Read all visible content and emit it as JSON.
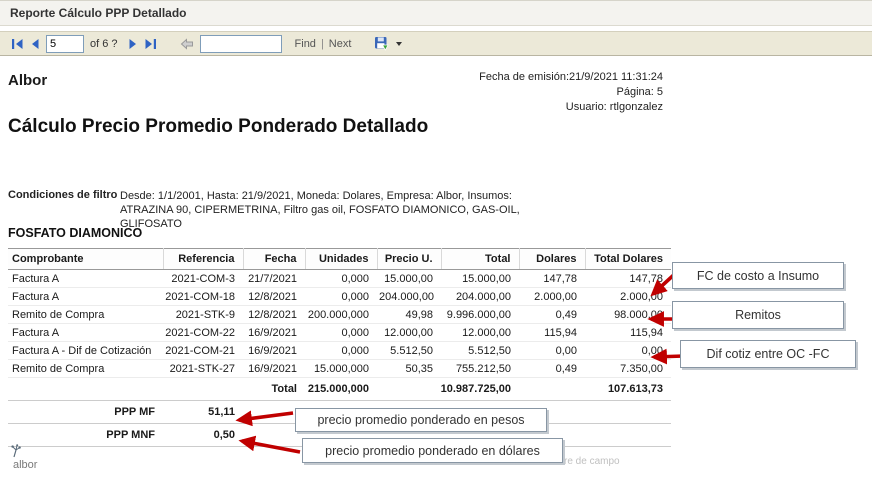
{
  "window": {
    "title": "Reporte Cálculo PPP Detallado"
  },
  "toolbar": {
    "page_number": "5",
    "of_label": "of 6 ?",
    "find_label": "Find",
    "separator": "|",
    "next_label": "Next"
  },
  "report": {
    "company": "Albor",
    "emission": "Fecha de emisión:21/9/2021 11:31:24",
    "page": "Página: 5",
    "user": "Usuario: rtlgonzalez",
    "title": "Cálculo Precio Promedio Ponderado Detallado",
    "filter_label": "Condiciones de filtro",
    "filter_text": "Desde: 1/1/2001, Hasta: 21/9/2021, Moneda: Dolares, Empresa: Albor, Insumos: ATRAZINA 90, CIPERMETRINA, Filtro gas oil, FOSFATO DIAMONICO, GAS-OIL, GLIFOSATO",
    "section": "FOSFATO DIAMONICO",
    "logo_text": "albor",
    "watermark": "re de campo"
  },
  "table": {
    "columns": [
      "Comprobante",
      "Referencia",
      "Fecha",
      "Unidades",
      "Precio U.",
      "Total",
      "Dolares",
      "Total Dolares"
    ],
    "rows": [
      [
        "Factura A",
        "2021-COM-3",
        "21/7/2021",
        "0,000",
        "15.000,00",
        "15.000,00",
        "147,78",
        "147,78"
      ],
      [
        "Factura A",
        "2021-COM-18",
        "12/8/2021",
        "0,000",
        "204.000,00",
        "204.000,00",
        "2.000,00",
        "2.000,00"
      ],
      [
        "Remito de Compra",
        "2021-STK-9",
        "12/8/2021",
        "200.000,000",
        "49,98",
        "9.996.000,00",
        "0,49",
        "98.000,00"
      ],
      [
        "Factura A",
        "2021-COM-22",
        "16/9/2021",
        "0,000",
        "12.000,00",
        "12.000,00",
        "115,94",
        "115,94"
      ],
      [
        "Factura A - Dif de Cotización",
        "2021-COM-21",
        "16/9/2021",
        "0,000",
        "5.512,50",
        "5.512,50",
        "0,00",
        "0,00"
      ],
      [
        "Remito de Compra",
        "2021-STK-27",
        "16/9/2021",
        "15.000,000",
        "50,35",
        "755.212,50",
        "0,49",
        "7.350,00"
      ]
    ],
    "total": {
      "label": "Total",
      "unidades": "215.000,000",
      "total": "10.987.725,00",
      "total_dolares": "107.613,73"
    },
    "ppp_mf": {
      "label": "PPP MF",
      "value": "51,11"
    },
    "ppp_mnf": {
      "label": "PPP MNF",
      "value": "0,50"
    }
  },
  "callouts": {
    "fc_costo": "FC de costo a Insumo",
    "remitos": "Remitos",
    "dif_cotiz": "Dif cotiz entre OC -FC",
    "ppp_pesos": "precio promedio ponderado en pesos",
    "ppp_dolares": "precio promedio ponderado en dólares"
  },
  "colors": {
    "arrow_red": "#c00000",
    "toolbar_bg": "#ece9d8",
    "nav_blue": "#2f63c4"
  }
}
